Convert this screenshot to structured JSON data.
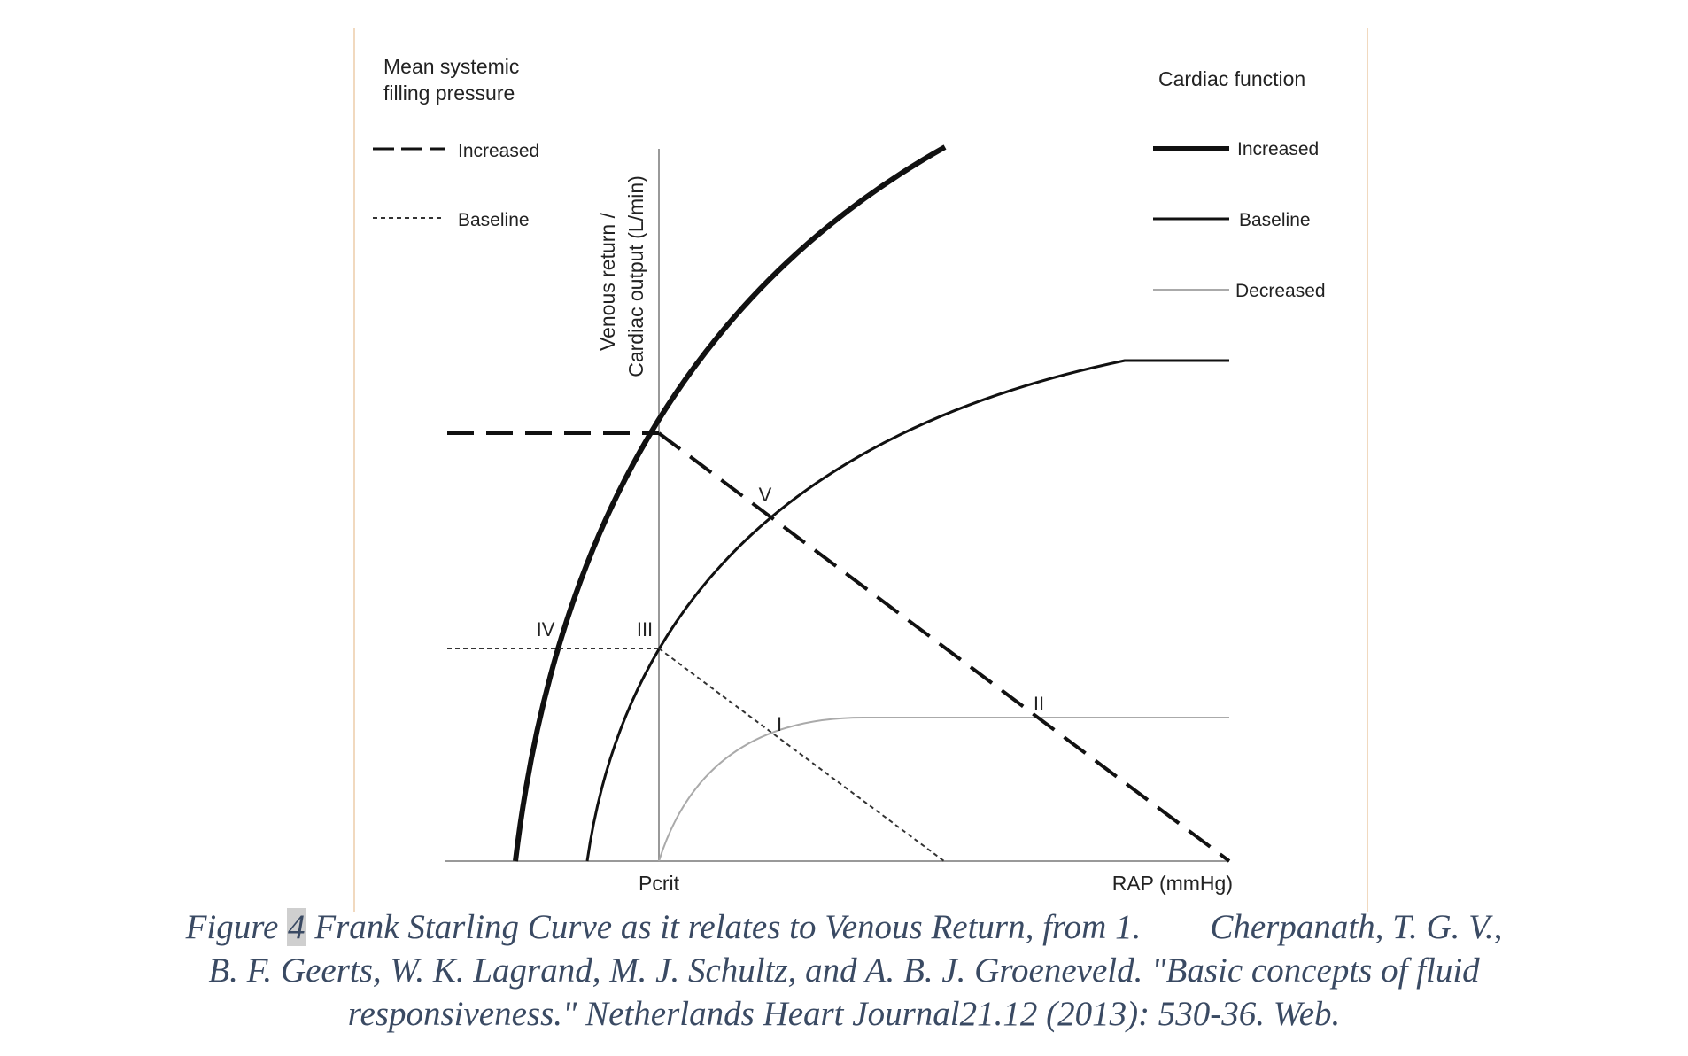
{
  "diagram": {
    "y_axis_label_line1": "Venous return /",
    "y_axis_label_line2": "Cardiac output (L/min)",
    "x_axis_label": "RAP (mmHg)",
    "x_marker_label": "Pcrit",
    "legend_left": {
      "title_line1": "Mean systemic",
      "title_line2": "filling pressure",
      "items": [
        "Increased",
        "Baseline"
      ]
    },
    "legend_right": {
      "title": "Cardiac function",
      "items": [
        "Increased",
        "Baseline",
        "Decreased"
      ]
    },
    "points": {
      "I": "I",
      "II": "II",
      "III": "III",
      "IV": "IV",
      "V": "V"
    },
    "colors": {
      "line": "#111111",
      "decreased_line": "#aaaaaa",
      "frame_line": "#f1d9bf",
      "caption": "#3a4a63"
    }
  },
  "caption": {
    "prefix": "Figure ",
    "number": "4",
    "line1_rest": " Frank Starling Curve as it relates to Venous Return, from 1.        Cherpanath, T. G. V.,",
    "line2": "B. F. Geerts, W. K. Lagrand, M. J. Schultz, and A. B. J. Groeneveld. \"Basic concepts of fluid",
    "line3": "responsiveness.\" Netherlands Heart Journal21.12 (2013): 530-36. Web."
  }
}
